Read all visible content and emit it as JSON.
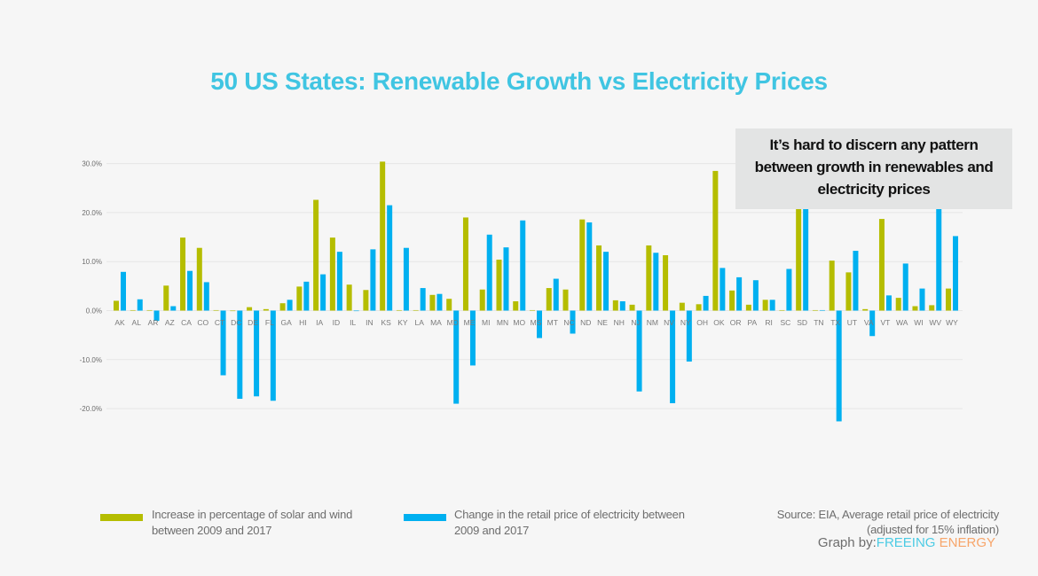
{
  "title": "50 US States: Renewable Growth vs Electricity Prices",
  "callout": "It’s hard to discern any pattern between growth in renewables and electricity prices",
  "legend": {
    "items": [
      {
        "label": "Increase in percentage of solar and wind between 2009 and 2017",
        "color": "#b5bd00"
      },
      {
        "label": "Change in the retail price of electricity between 2009 and 2017",
        "color": "#00b0f0"
      }
    ]
  },
  "source": {
    "line1": "Source: EIA, Average retail price of electricity",
    "line2": "(adjusted for 15% inflation)"
  },
  "brand": {
    "prefix": "Graph by:",
    "word1": "FREEING",
    "word2": "ENERGY"
  },
  "chart_data": {
    "type": "bar",
    "title": "50 US States: Renewable Growth vs Electricity Prices",
    "xlabel": "",
    "ylabel": "",
    "ylim": [
      -30,
      30
    ],
    "yticks": [
      "-20.0%",
      "-10.0%",
      "0.0%",
      "10.0%",
      "20.0%",
      "30.0%"
    ],
    "ytick_values": [
      -20,
      -10,
      0,
      10,
      20,
      30
    ],
    "grid": true,
    "legend_position": "bottom",
    "categories": [
      "AK",
      "AL",
      "AR",
      "AZ",
      "CA",
      "CO",
      "CT",
      "DC",
      "DE",
      "FL",
      "GA",
      "HI",
      "IA",
      "ID",
      "IL",
      "IN",
      "KS",
      "KY",
      "LA",
      "MA",
      "MD",
      "ME",
      "MI",
      "MN",
      "MO",
      "MS",
      "MT",
      "NC",
      "ND",
      "NE",
      "NH",
      "NJ",
      "NM",
      "NV",
      "NY",
      "OH",
      "OK",
      "OR",
      "PA",
      "RI",
      "SC",
      "SD",
      "TN",
      "TX",
      "UT",
      "VA",
      "VT",
      "WA",
      "WI",
      "WV",
      "WY"
    ],
    "series": [
      {
        "name": "Increase in percentage of solar and wind between 2009 and 2017",
        "color": "#b5bd00",
        "values": [
          2.0,
          0.1,
          0.1,
          5.1,
          14.9,
          12.8,
          0.1,
          0,
          0.7,
          0.3,
          1.5,
          4.9,
          22.6,
          14.9,
          5.3,
          4.2,
          30.4,
          0.1,
          0.1,
          3.2,
          2.4,
          19.0,
          4.3,
          10.4,
          1.9,
          0.1,
          4.6,
          4.3,
          18.6,
          13.3,
          2.1,
          1.2,
          13.3,
          11.3,
          1.6,
          1.3,
          28.5,
          4.1,
          1.2,
          2.2,
          0.1,
          21.0,
          0.1,
          10.2,
          7.8,
          0.3,
          18.7,
          2.6,
          0.9,
          1.1,
          4.5
        ]
      },
      {
        "name": "Change in the retail price of electricity between 2009 and 2017",
        "color": "#00b0f0",
        "values": [
          7.9,
          2.3,
          -2.1,
          0.9,
          8.1,
          5.8,
          -13.2,
          -18.0,
          -17.5,
          -18.4,
          2.2,
          5.9,
          7.4,
          12.0,
          0,
          12.5,
          21.5,
          12.8,
          4.6,
          3.4,
          -19.0,
          -11.2,
          15.5,
          12.9,
          18.4,
          -5.6,
          6.5,
          -4.7,
          18.0,
          12.0,
          1.9,
          -16.5,
          11.8,
          -18.9,
          -10.4,
          3.0,
          8.7,
          6.8,
          6.2,
          2.2,
          8.5,
          21.0,
          0.1,
          -22.6,
          12.2,
          -5.2,
          3.1,
          9.6,
          4.5,
          21.0,
          15.2
        ]
      }
    ]
  }
}
